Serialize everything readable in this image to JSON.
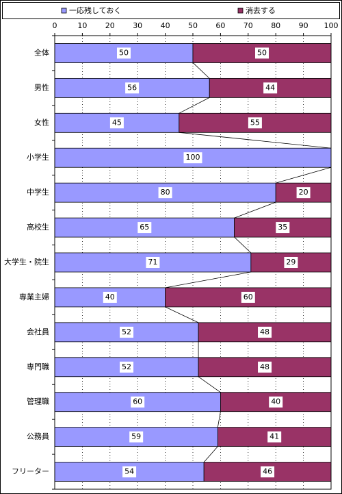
{
  "chart_data": {
    "type": "bar",
    "orientation": "horizontal",
    "stacked": true,
    "categories": [
      "全体",
      "男性",
      "女性",
      "小学生",
      "中学生",
      "高校生",
      "大学生・院生",
      "専業主婦",
      "会社員",
      "専門職",
      "管理職",
      "公務員",
      "フリーター"
    ],
    "series": [
      {
        "name": "一応残しておく",
        "color": "#9999ff",
        "values": [
          50,
          56,
          45,
          100,
          80,
          65,
          71,
          40,
          52,
          52,
          60,
          59,
          54
        ]
      },
      {
        "name": "消去する",
        "color": "#993366",
        "values": [
          50,
          44,
          55,
          null,
          20,
          35,
          29,
          60,
          48,
          48,
          40,
          41,
          46
        ]
      }
    ],
    "xlim": [
      0,
      100
    ],
    "xticks": [
      0,
      10,
      20,
      30,
      40,
      50,
      60,
      70,
      80,
      90,
      100
    ],
    "grid": true,
    "series_lines": true
  }
}
